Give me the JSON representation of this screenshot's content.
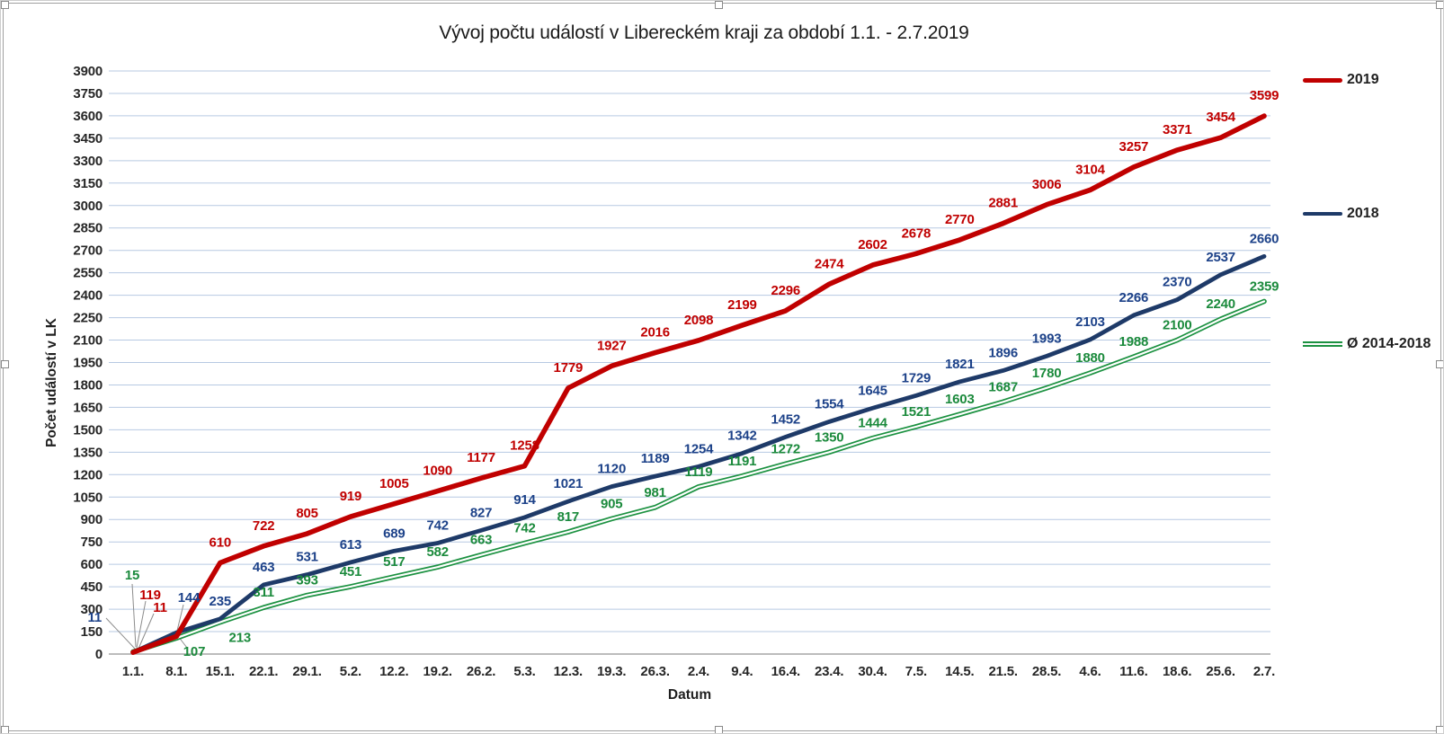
{
  "window": {
    "type": "embedded spreadsheet chart object (selected)"
  },
  "chart_data": {
    "type": "line",
    "title": "Vývoj počtu událostí v Libereckém kraji za období 1.1. - 2.7.2019",
    "xlabel": "Datum",
    "ylabel": "Počet událostí v LK",
    "ylim": [
      0,
      3900
    ],
    "ytick_step": 150,
    "grid": true,
    "legend_position": "right",
    "data_labels": true,
    "categories": [
      "1.1.",
      "8.1.",
      "15.1.",
      "22.1.",
      "29.1.",
      "5.2.",
      "12.2.",
      "19.2.",
      "26.2.",
      "5.3.",
      "12.3.",
      "19.3.",
      "26.3.",
      "2.4.",
      "9.4.",
      "16.4.",
      "23.4.",
      "30.4.",
      "7.5.",
      "14.5.",
      "21.5.",
      "28.5.",
      "4.6.",
      "11.6.",
      "18.6.",
      "25.6.",
      "2.7."
    ],
    "series": [
      {
        "name": "2019",
        "color": "#c00000",
        "label_color": "#c00000",
        "style": "solid",
        "values": [
          11,
          119,
          610,
          722,
          805,
          919,
          1005,
          1090,
          1177,
          1258,
          1779,
          1927,
          2016,
          2098,
          2199,
          2296,
          2474,
          2602,
          2678,
          2770,
          2881,
          3006,
          3104,
          3257,
          3371,
          3454,
          3599
        ]
      },
      {
        "name": "2018",
        "color": "#1e3a68",
        "label_color": "#1d4289",
        "style": "solid",
        "values": [
          11,
          144,
          235,
          463,
          531,
          613,
          689,
          742,
          827,
          914,
          1021,
          1120,
          1189,
          1254,
          1342,
          1452,
          1554,
          1645,
          1729,
          1821,
          1896,
          1993,
          2103,
          2266,
          2370,
          2537,
          2660
        ]
      },
      {
        "name": "Ø 2014-2018",
        "color": "#1b9140",
        "label_color": "#1b8a3c",
        "style": "double",
        "values": [
          15,
          107,
          213,
          311,
          393,
          451,
          517,
          582,
          663,
          742,
          817,
          905,
          981,
          1119,
          1191,
          1272,
          1350,
          1444,
          1521,
          1603,
          1687,
          1780,
          1880,
          1988,
          2100,
          2240,
          2359
        ]
      }
    ],
    "colors": {
      "gridline": "#b7c9e2",
      "axis_line": "#a6a6a6",
      "leader_line": "#8c8c8c",
      "tick_text": "#262626"
    }
  }
}
